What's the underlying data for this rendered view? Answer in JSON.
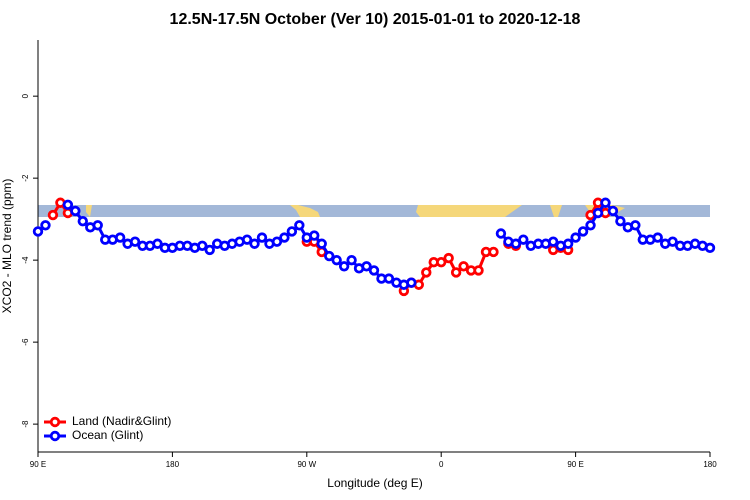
{
  "chart_data": {
    "type": "line",
    "title": "12.5N-17.5N October (Ver 10)   2015-01-01 to 2020-12-18",
    "xlabel": "Longitude (deg E)",
    "ylabel": "XCO2 - MLO trend (ppm)",
    "xlim": [
      90,
      540
    ],
    "ylim": [
      -8.68,
      1.37
    ],
    "xticks": [
      {
        "value": 90,
        "label": "90 E"
      },
      {
        "value": 180,
        "label": "180"
      },
      {
        "value": 270,
        "label": "90 W"
      },
      {
        "value": 360,
        "label": "0"
      },
      {
        "value": 450,
        "label": "90 E"
      },
      {
        "value": 540,
        "label": "180"
      }
    ],
    "yticks": [
      0,
      -2,
      -4,
      -6,
      -8
    ],
    "legend": "bottom-left",
    "x": [
      90,
      95,
      100,
      105,
      110,
      115,
      120,
      125,
      130,
      135,
      140,
      145,
      150,
      155,
      160,
      165,
      170,
      175,
      180,
      185,
      190,
      195,
      200,
      205,
      210,
      215,
      220,
      225,
      230,
      235,
      240,
      245,
      250,
      255,
      260,
      265,
      270,
      275,
      280,
      285,
      290,
      295,
      300,
      305,
      310,
      315,
      320,
      325,
      330,
      335,
      340,
      345,
      350,
      355,
      360,
      365,
      370,
      375,
      380,
      385,
      390,
      395,
      400,
      405,
      410,
      415,
      420,
      425,
      430,
      435,
      440,
      445,
      450,
      455,
      460,
      465,
      470,
      475,
      480,
      485,
      490,
      495,
      500,
      505,
      510,
      515,
      520,
      525,
      530,
      535,
      540
    ],
    "series": [
      {
        "name": "Land (Nadir&Glint)",
        "color": "#ff0000",
        "values": [
          null,
          null,
          -2.9,
          -2.6,
          -2.85,
          null,
          null,
          null,
          null,
          null,
          null,
          null,
          null,
          null,
          null,
          null,
          null,
          null,
          null,
          null,
          null,
          null,
          null,
          null,
          null,
          null,
          null,
          null,
          null,
          null,
          null,
          null,
          null,
          null,
          null,
          null,
          -3.55,
          -3.55,
          -3.8,
          null,
          null,
          null,
          null,
          null,
          null,
          null,
          null,
          null,
          null,
          -4.75,
          -4.55,
          -4.6,
          -4.3,
          -4.05,
          -4.05,
          -3.95,
          -4.3,
          -4.15,
          -4.25,
          -4.25,
          -3.8,
          -3.8,
          null,
          -3.6,
          -3.65,
          null,
          null,
          null,
          null,
          -3.75,
          -3.7,
          -3.75,
          null,
          null,
          -2.9,
          -2.6,
          -2.85,
          null,
          null,
          null,
          null,
          null,
          null,
          null,
          null,
          null,
          null,
          null,
          null,
          null,
          null
        ]
      },
      {
        "name": "Ocean (Glint)",
        "color": "#0000ff",
        "values": [
          -3.3,
          -3.15,
          null,
          null,
          -2.65,
          -2.8,
          -3.05,
          -3.2,
          -3.15,
          -3.5,
          -3.5,
          -3.45,
          -3.6,
          -3.55,
          -3.65,
          -3.65,
          -3.6,
          -3.7,
          -3.7,
          -3.65,
          -3.65,
          -3.7,
          -3.65,
          -3.75,
          -3.6,
          -3.65,
          -3.6,
          -3.55,
          -3.5,
          -3.6,
          -3.45,
          -3.6,
          -3.55,
          -3.45,
          -3.3,
          -3.15,
          -3.45,
          -3.4,
          -3.6,
          -3.9,
          -4.0,
          -4.15,
          -4.0,
          -4.2,
          -4.15,
          -4.25,
          -4.45,
          -4.45,
          -4.55,
          -4.6,
          -4.55,
          null,
          null,
          null,
          null,
          null,
          null,
          null,
          null,
          null,
          null,
          null,
          -3.35,
          -3.55,
          -3.6,
          -3.5,
          -3.65,
          -3.6,
          -3.6,
          -3.55,
          -3.65,
          -3.6,
          -3.45,
          -3.3,
          -3.15,
          -2.85,
          -2.6,
          -2.8,
          -3.05,
          -3.2,
          -3.15,
          -3.5,
          -3.5,
          -3.45,
          -3.6,
          -3.55,
          -3.65,
          -3.65,
          -3.6,
          -3.65,
          -3.7
        ]
      }
    ]
  }
}
